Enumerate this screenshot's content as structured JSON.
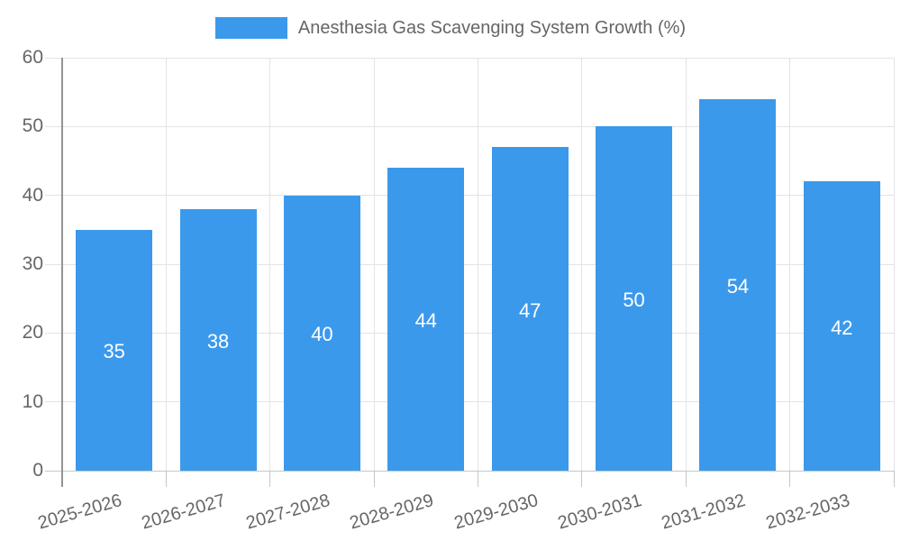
{
  "chart_data": {
    "type": "bar",
    "title": "Anesthesia Gas Scavenging System Growth (%)",
    "legend": {
      "position": "top",
      "entries": [
        "Anesthesia Gas Scavenging System Growth (%)"
      ]
    },
    "categories": [
      "2025-2026",
      "2026-2027",
      "2027-2028",
      "2028-2029",
      "2029-2030",
      "2030-2031",
      "2031-2032",
      "2032-2033"
    ],
    "values": [
      35,
      38,
      40,
      44,
      47,
      50,
      54,
      42
    ],
    "value_labels_shown": true,
    "xlabel": "",
    "ylabel": "",
    "ylim": [
      0,
      60
    ],
    "yticks": [
      0,
      10,
      20,
      30,
      40,
      50,
      60
    ],
    "grid": true,
    "colors": {
      "bar": "#3B99EC",
      "value_label": "#FFFFFF",
      "axis_text": "#666666",
      "gridline": "#E3E3E3",
      "baseline": "#C6C6C6",
      "y_axis_line": "#949494"
    }
  }
}
